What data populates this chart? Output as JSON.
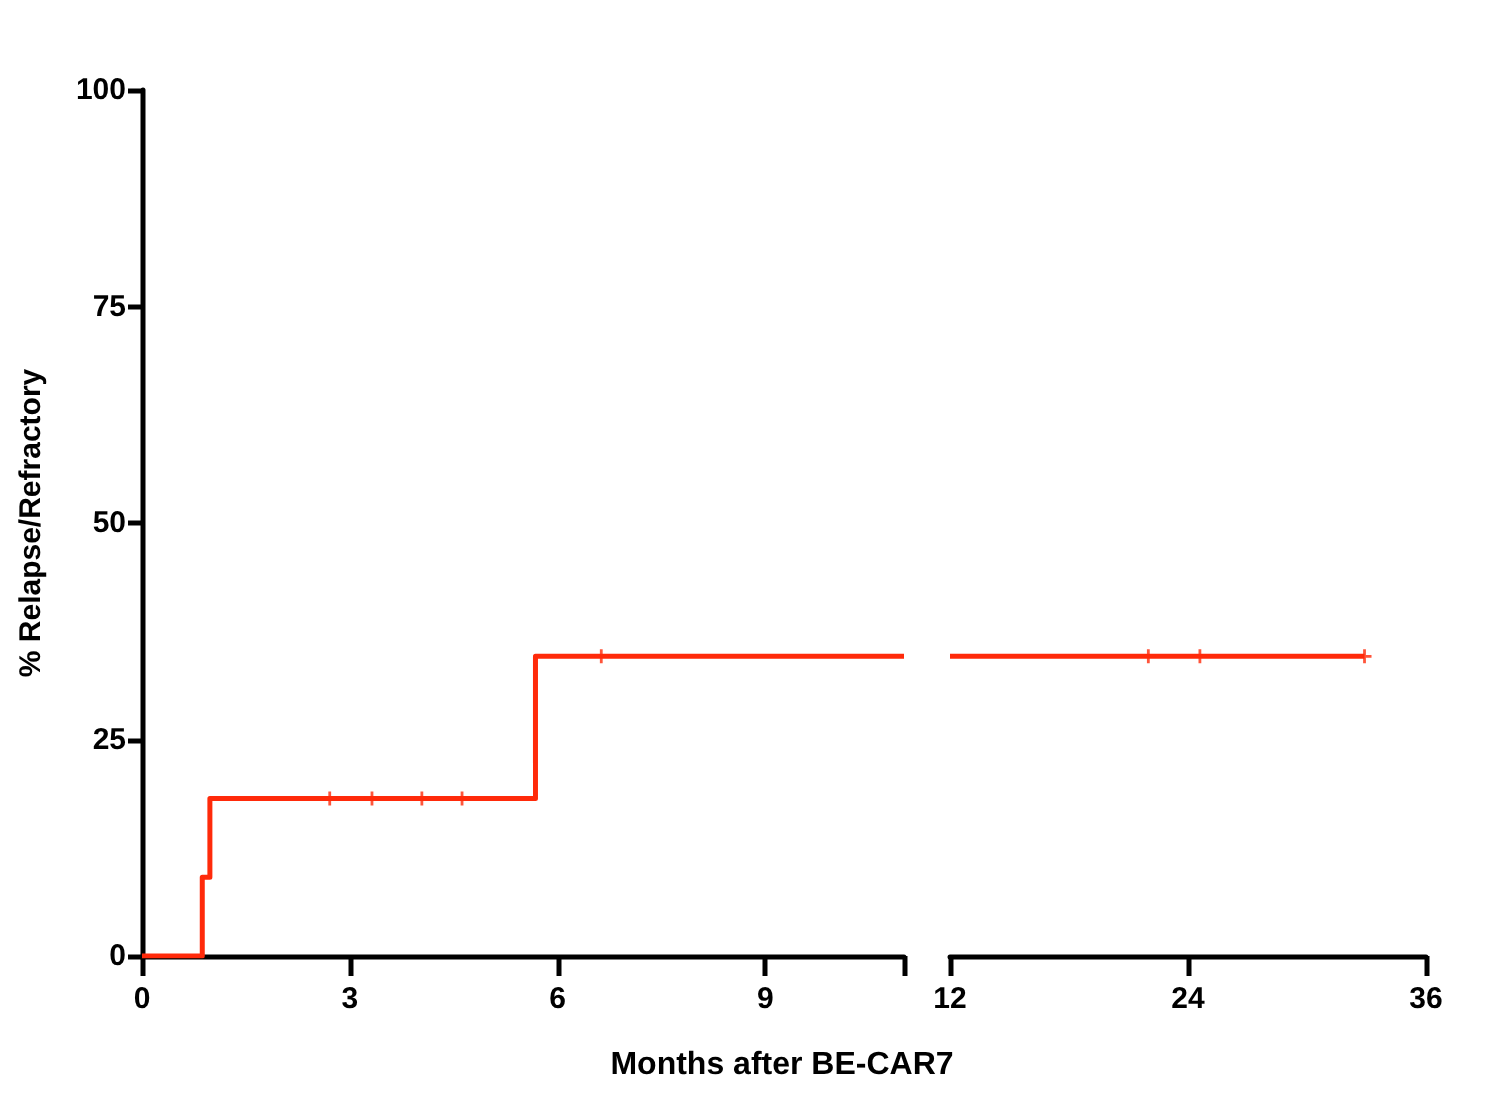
{
  "chart_data": [
    {
      "type": "step",
      "xlabel": "Months after BE-CAR7",
      "ylabel": "% Relapse/Refractory",
      "xlim": [
        0,
        11
      ],
      "xticks": [
        0,
        3,
        6,
        9,
        {
          "value": 11,
          "label": null
        }
      ],
      "ylim": [
        0,
        100
      ],
      "yticks": [
        0,
        25,
        50,
        75,
        100
      ],
      "grid": false,
      "series": [
        {
          "color": "#ff2a0a",
          "x": [
            0,
            0.87,
            0.98,
            5.68,
            11
          ],
          "values": [
            0,
            9.1,
            18.2,
            34.6,
            34.6
          ]
        },
        {
          "type": "scatter",
          "color": "#ff2a0a",
          "marker": "cross",
          "x": [
            2.71,
            3.32,
            4.04,
            4.62,
            6.63
          ],
          "values": [
            18.2,
            18.2,
            18.2,
            18.2,
            34.6
          ]
        }
      ]
    },
    {
      "type": "step",
      "xlim": [
        12,
        36
      ],
      "xticks": [
        12,
        24,
        36
      ],
      "ylim": [
        0,
        100
      ],
      "tick_labels": "x",
      "grid": false,
      "series": [
        {
          "color": "#ff2a0a",
          "x": [
            12,
            32.9
          ],
          "values": [
            34.6,
            34.6
          ]
        },
        {
          "type": "scatter",
          "color": "#ff2a0a",
          "marker": "cross",
          "x": [
            22.0,
            24.6,
            32.9
          ],
          "values": [
            34.6,
            34.6,
            34.6
          ]
        }
      ]
    }
  ]
}
